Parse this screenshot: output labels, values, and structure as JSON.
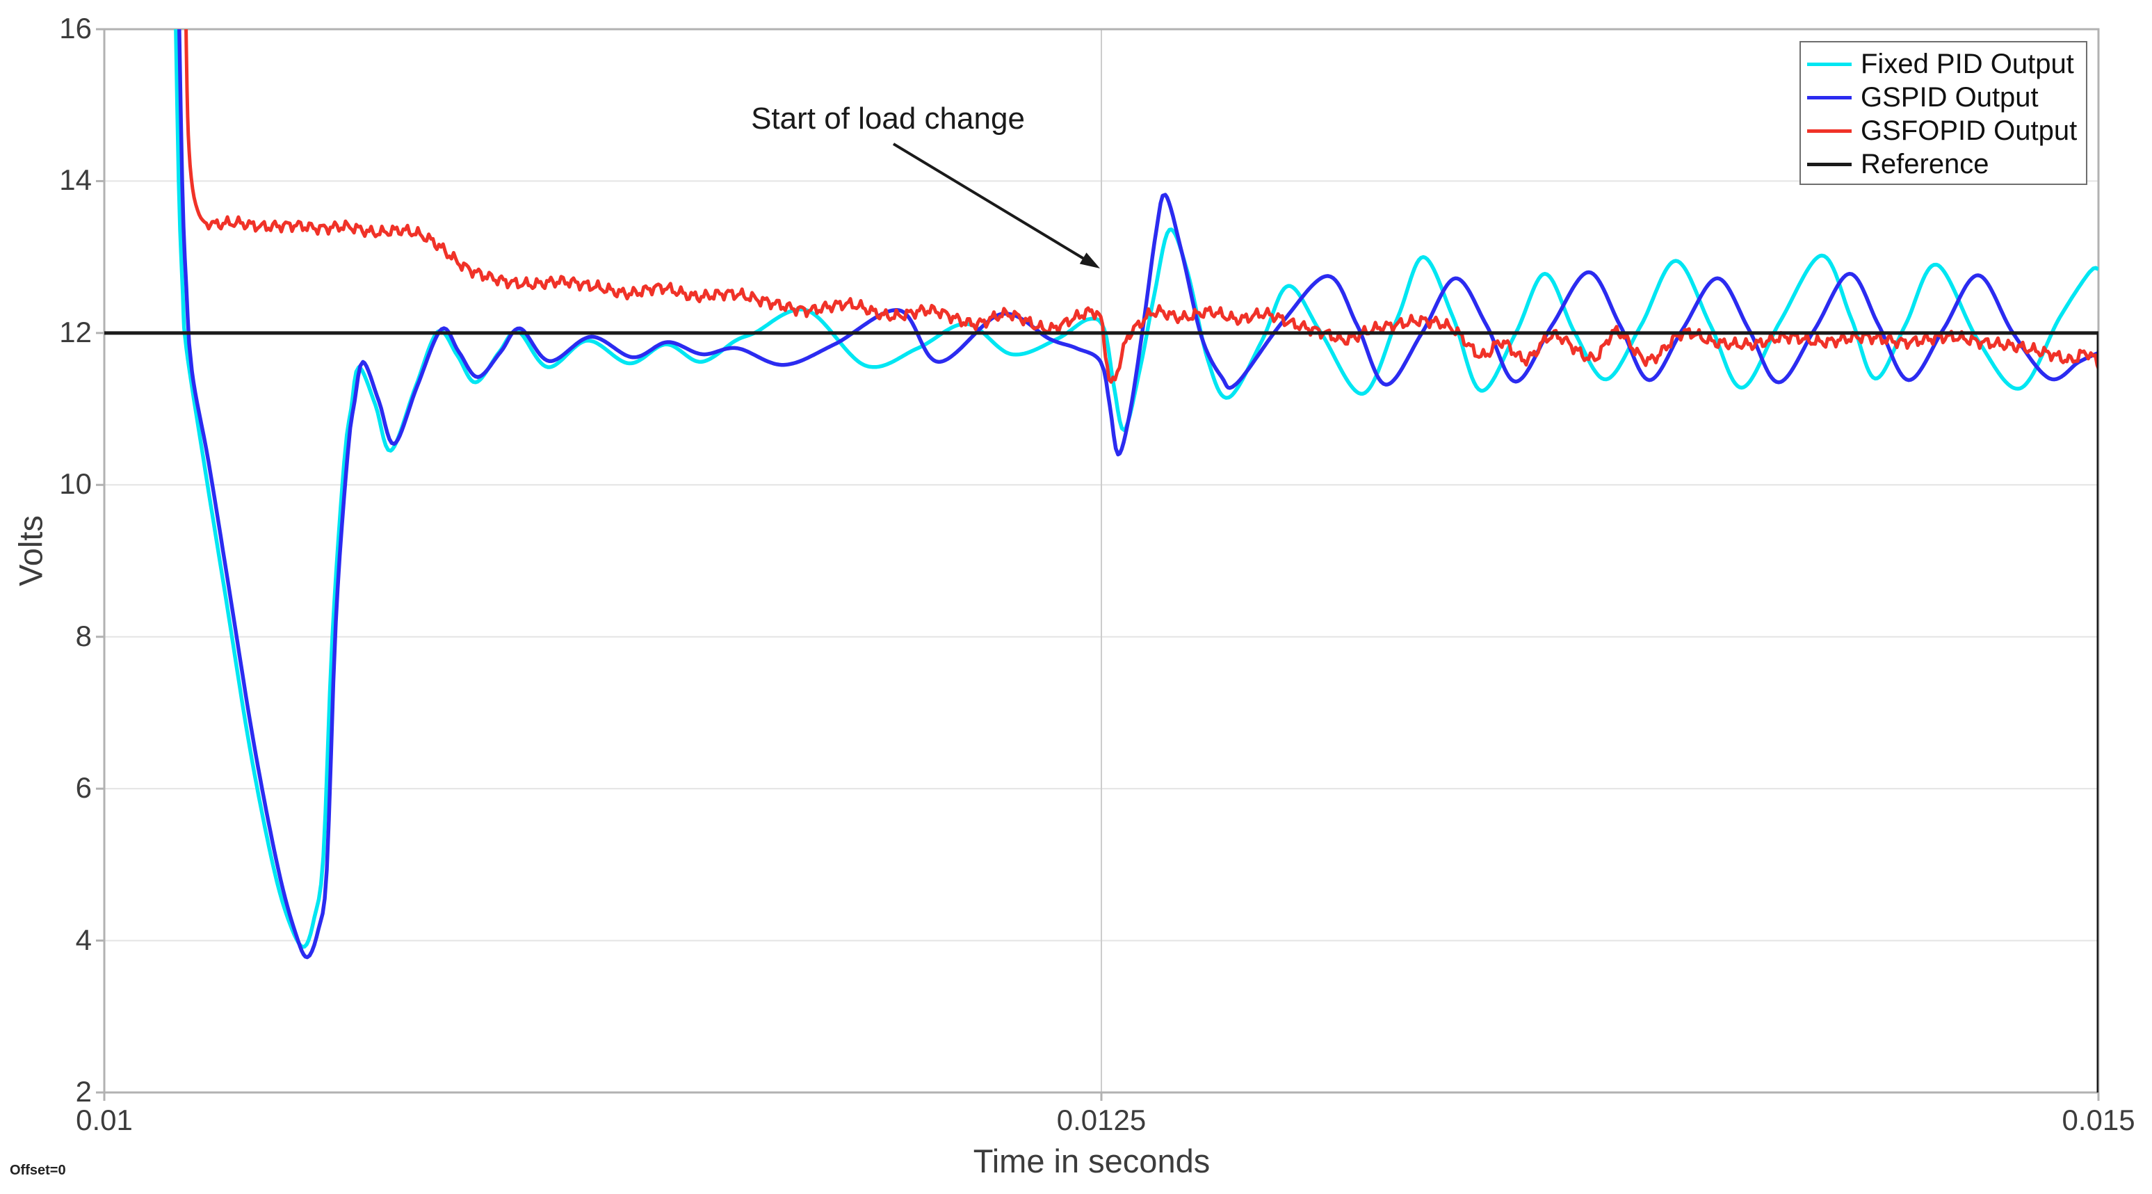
{
  "page": {
    "background": "#ffffff"
  },
  "axes": {
    "x_label": "Time in seconds",
    "y_label": "Volts",
    "x_ticks": [
      {
        "value": 0.01,
        "label": "0.01"
      },
      {
        "value": 0.0125,
        "label": "0.0125"
      },
      {
        "value": 0.015,
        "label": "0.015"
      }
    ],
    "y_ticks": [
      {
        "value": 2,
        "label": "2"
      },
      {
        "value": 4,
        "label": "4"
      },
      {
        "value": 6,
        "label": "6"
      },
      {
        "value": 8,
        "label": "8"
      },
      {
        "value": 10,
        "label": "10"
      },
      {
        "value": 12,
        "label": "12"
      },
      {
        "value": 14,
        "label": "14"
      },
      {
        "value": 16,
        "label": "16"
      }
    ],
    "colors": {
      "box": "#b2b2b2",
      "grid": "#e4e4e4",
      "grid_x": "#cccccc",
      "tick_text": "#3c3c3c"
    }
  },
  "offset_label": "Offset=0",
  "annotation": {
    "text": "Start of load change",
    "arrow_start": [
      0.0119787,
      14.49
    ],
    "arrow_end": [
      0.0124966,
      12.85
    ],
    "color": "#1a1a1a"
  },
  "legend": {
    "position": "top-right",
    "entries": [
      {
        "label": "Fixed PID Output",
        "color": "#00e6f2"
      },
      {
        "label": "GSPID Output",
        "color": "#2b2bf0"
      },
      {
        "label": "GSFOPID Output",
        "color": "#f03228"
      },
      {
        "label": "Reference",
        "color": "#1a1a1a"
      }
    ]
  },
  "chart_data": {
    "type": "line",
    "title": "",
    "xlabel": "Time in seconds",
    "ylabel": "Volts",
    "xlim": [
      0.01,
      0.015
    ],
    "ylim": [
      2,
      16
    ],
    "grid": true,
    "legend_position": "top-right",
    "series": [
      {
        "name": "Fixed PID Output",
        "color": "#00e6f2",
        "width": 5.5,
        "smooth": true,
        "points": [
          [
            0.0101761,
            17
          ],
          [
            0.0101865,
            14
          ],
          [
            0.010197,
            12.5
          ],
          [
            0.0102057,
            11.8
          ],
          [
            0.0102528,
            10.2
          ],
          [
            0.0103051,
            8.5
          ],
          [
            0.0103661,
            6.5
          ],
          [
            0.0104271,
            4.9
          ],
          [
            0.0104707,
            4.15
          ],
          [
            0.0105021,
            3.92
          ],
          [
            0.0105265,
            4.3
          ],
          [
            0.0105491,
            5.1
          ],
          [
            0.0105718,
            8.0
          ],
          [
            0.0106014,
            10.3
          ],
          [
            0.0106189,
            11.0
          ],
          [
            0.0106381,
            11.55
          ],
          [
            0.0106799,
            11.05
          ],
          [
            0.0107183,
            10.45
          ],
          [
            0.010781,
            11.3
          ],
          [
            0.0108368,
            12.02
          ],
          [
            0.0108856,
            11.7
          ],
          [
            0.0109309,
            11.35
          ],
          [
            0.0109902,
            11.75
          ],
          [
            0.0110373,
            12.02
          ],
          [
            0.0111123,
            11.55
          ],
          [
            0.0112117,
            11.9
          ],
          [
            0.0113163,
            11.6
          ],
          [
            0.0114086,
            11.85
          ],
          [
            0.0114958,
            11.62
          ],
          [
            0.0115829,
            11.9
          ],
          [
            0.01163,
            12.0
          ],
          [
            0.0117607,
            12.3
          ],
          [
            0.0119089,
            11.57
          ],
          [
            0.0120397,
            11.8
          ],
          [
            0.0121617,
            12.12
          ],
          [
            0.012275,
            11.72
          ],
          [
            0.0123883,
            11.92
          ],
          [
            0.0124668,
            12.18
          ],
          [
            0.012507,
            12.05
          ],
          [
            0.0125314,
            11.3
          ],
          [
            0.0125575,
            10.72
          ],
          [
            0.0125976,
            11.55
          ],
          [
            0.0126325,
            12.5
          ],
          [
            0.0126708,
            13.36
          ],
          [
            0.0127161,
            12.8
          ],
          [
            0.0127667,
            11.65
          ],
          [
            0.012819,
            11.15
          ],
          [
            0.0129027,
            11.9
          ],
          [
            0.0129689,
            12.62
          ],
          [
            0.0130509,
            12.0
          ],
          [
            0.0131555,
            11.2
          ],
          [
            0.0132426,
            12.2
          ],
          [
            0.0133071,
            13.0
          ],
          [
            0.0133821,
            12.2
          ],
          [
            0.0134518,
            11.24
          ],
          [
            0.0135391,
            12.0
          ],
          [
            0.0136123,
            12.78
          ],
          [
            0.0136872,
            12.0
          ],
          [
            0.0137657,
            11.39
          ],
          [
            0.0138529,
            12.1
          ],
          [
            0.0139401,
            12.95
          ],
          [
            0.0140272,
            12.1
          ],
          [
            0.0141057,
            11.28
          ],
          [
            0.0142016,
            12.15
          ],
          [
            0.0143062,
            13.02
          ],
          [
            0.0143794,
            12.2
          ],
          [
            0.0144404,
            11.4
          ],
          [
            0.0145154,
            12.1
          ],
          [
            0.0145938,
            12.9
          ],
          [
            0.0146984,
            11.9
          ],
          [
            0.014803,
            11.27
          ],
          [
            0.0149024,
            12.2
          ],
          [
            0.0149774,
            12.8
          ],
          [
            0.015,
            12.84
          ]
        ]
      },
      {
        "name": "GSPID Output",
        "color": "#2b2bf0",
        "width": 5.5,
        "smooth": true,
        "points": [
          [
            0.0101848,
            17
          ],
          [
            0.0101952,
            14
          ],
          [
            0.0102057,
            12.6
          ],
          [
            0.0102196,
            11.5
          ],
          [
            0.0102615,
            10.3
          ],
          [
            0.0103138,
            8.6
          ],
          [
            0.0103748,
            6.6
          ],
          [
            0.0104358,
            4.95
          ],
          [
            0.0104794,
            4.1
          ],
          [
            0.010509,
            3.78
          ],
          [
            0.0105369,
            4.15
          ],
          [
            0.0105578,
            4.93
          ],
          [
            0.0105805,
            8.2
          ],
          [
            0.0106101,
            10.4
          ],
          [
            0.0106276,
            11.1
          ],
          [
            0.0106485,
            11.62
          ],
          [
            0.0106886,
            11.1
          ],
          [
            0.010727,
            10.54
          ],
          [
            0.0107845,
            11.3
          ],
          [
            0.0108455,
            12.05
          ],
          [
            0.0108891,
            11.75
          ],
          [
            0.0109362,
            11.42
          ],
          [
            0.0109937,
            11.75
          ],
          [
            0.0110425,
            12.06
          ],
          [
            0.0111158,
            11.63
          ],
          [
            0.0112204,
            11.95
          ],
          [
            0.011325,
            11.68
          ],
          [
            0.0114121,
            11.88
          ],
          [
            0.0114993,
            11.72
          ],
          [
            0.0115864,
            11.8
          ],
          [
            0.0117032,
            11.58
          ],
          [
            0.0118305,
            11.85
          ],
          [
            0.0119926,
            12.3
          ],
          [
            0.012092,
            11.62
          ],
          [
            0.0122489,
            12.25
          ],
          [
            0.0123709,
            11.92
          ],
          [
            0.0124372,
            11.8
          ],
          [
            0.0124982,
            11.62
          ],
          [
            0.0125209,
            11.05
          ],
          [
            0.0125418,
            10.4
          ],
          [
            0.0125714,
            10.95
          ],
          [
            0.0126063,
            12.15
          ],
          [
            0.0126377,
            13.35
          ],
          [
            0.0126604,
            13.82
          ],
          [
            0.0127022,
            13.05
          ],
          [
            0.012751,
            11.95
          ],
          [
            0.0128016,
            11.42
          ],
          [
            0.0128382,
            11.33
          ],
          [
            0.012955,
            12.15
          ],
          [
            0.0130683,
            12.75
          ],
          [
            0.0131415,
            12.1
          ],
          [
            0.013213,
            11.32
          ],
          [
            0.0133037,
            12.0
          ],
          [
            0.0133874,
            12.72
          ],
          [
            0.0134658,
            12.1
          ],
          [
            0.0135391,
            11.36
          ],
          [
            0.0136297,
            12.1
          ],
          [
            0.0137221,
            12.8
          ],
          [
            0.0138006,
            12.1
          ],
          [
            0.0138738,
            11.38
          ],
          [
            0.0139575,
            12.05
          ],
          [
            0.0140446,
            12.72
          ],
          [
            0.0141231,
            12.05
          ],
          [
            0.0141981,
            11.35
          ],
          [
            0.0142887,
            12.05
          ],
          [
            0.0143759,
            12.78
          ],
          [
            0.0144491,
            12.1
          ],
          [
            0.0145241,
            11.38
          ],
          [
            0.0146112,
            12.05
          ],
          [
            0.0146984,
            12.76
          ],
          [
            0.0147856,
            12.0
          ],
          [
            0.014878,
            11.4
          ],
          [
            0.0149512,
            11.62
          ],
          [
            0.015,
            11.74
          ]
        ]
      },
      {
        "name": "GSFOPID Output",
        "color": "#f03228",
        "width": 5,
        "smooth": true,
        "noise": {
          "amp": 0.085,
          "wavelength": 3e-05,
          "from": 0.010257
        },
        "points": [
          [
            0.0102022,
            17
          ],
          [
            0.0102074,
            15.2
          ],
          [
            0.0102127,
            14.4
          ],
          [
            0.0102214,
            13.9
          ],
          [
            0.0102336,
            13.62
          ],
          [
            0.0102475,
            13.48
          ],
          [
            0.0102702,
            13.43
          ],
          [
            0.0103312,
            13.45
          ],
          [
            0.010401,
            13.4
          ],
          [
            0.0104707,
            13.42
          ],
          [
            0.0105404,
            13.38
          ],
          [
            0.0106101,
            13.4
          ],
          [
            0.0106799,
            13.32
          ],
          [
            0.0107496,
            13.35
          ],
          [
            0.0108193,
            13.22
          ],
          [
            0.0109013,
            12.88
          ],
          [
            0.0109762,
            12.72
          ],
          [
            0.0110634,
            12.64
          ],
          [
            0.0111506,
            12.68
          ],
          [
            0.0112377,
            12.6
          ],
          [
            0.0113163,
            12.52
          ],
          [
            0.0113947,
            12.6
          ],
          [
            0.0114819,
            12.48
          ],
          [
            0.011569,
            12.52
          ],
          [
            0.0116562,
            12.42
          ],
          [
            0.0117608,
            12.3
          ],
          [
            0.0118654,
            12.38
          ],
          [
            0.01197,
            12.22
          ],
          [
            0.0120746,
            12.3
          ],
          [
            0.0121792,
            12.12
          ],
          [
            0.0122663,
            12.25
          ],
          [
            0.0123622,
            12.05
          ],
          [
            0.012432,
            12.2
          ],
          [
            0.0124755,
            12.28
          ],
          [
            0.0124982,
            12.18
          ],
          [
            0.0125105,
            11.75
          ],
          [
            0.0125244,
            11.32
          ],
          [
            0.0125453,
            11.6
          ],
          [
            0.0125662,
            11.95
          ],
          [
            0.0125889,
            12.08
          ],
          [
            0.012636,
            12.28
          ],
          [
            0.0127022,
            12.2
          ],
          [
            0.0127719,
            12.28
          ],
          [
            0.0128417,
            12.18
          ],
          [
            0.0129114,
            12.25
          ],
          [
            0.0129811,
            12.12
          ],
          [
            0.0130596,
            12.0
          ],
          [
            0.0131119,
            11.91
          ],
          [
            0.0131816,
            12.05
          ],
          [
            0.0132513,
            12.12
          ],
          [
            0.0133124,
            12.16
          ],
          [
            0.0133821,
            12.05
          ],
          [
            0.0134518,
            11.7
          ],
          [
            0.0135041,
            11.88
          ],
          [
            0.0135652,
            11.65
          ],
          [
            0.0136349,
            11.97
          ],
          [
            0.0137308,
            11.66
          ],
          [
            0.0137918,
            12.02
          ],
          [
            0.0138703,
            11.64
          ],
          [
            0.0139575,
            12.0
          ],
          [
            0.0140359,
            11.88
          ],
          [
            0.0141318,
            11.85
          ],
          [
            0.014219,
            11.95
          ],
          [
            0.0143062,
            11.88
          ],
          [
            0.0144108,
            11.95
          ],
          [
            0.0145154,
            11.88
          ],
          [
            0.01462,
            11.95
          ],
          [
            0.0147071,
            11.88
          ],
          [
            0.0147943,
            11.82
          ],
          [
            0.0148815,
            11.72
          ],
          [
            0.0149303,
            11.64
          ],
          [
            0.0149686,
            11.74
          ],
          [
            0.015,
            11.6
          ]
        ]
      },
      {
        "name": "Reference",
        "color": "#1a1a1a",
        "width": 5,
        "smooth": false,
        "points": [
          [
            0.01,
            12
          ],
          [
            0.015,
            12
          ],
          [
            0.015,
            2
          ]
        ]
      }
    ]
  }
}
